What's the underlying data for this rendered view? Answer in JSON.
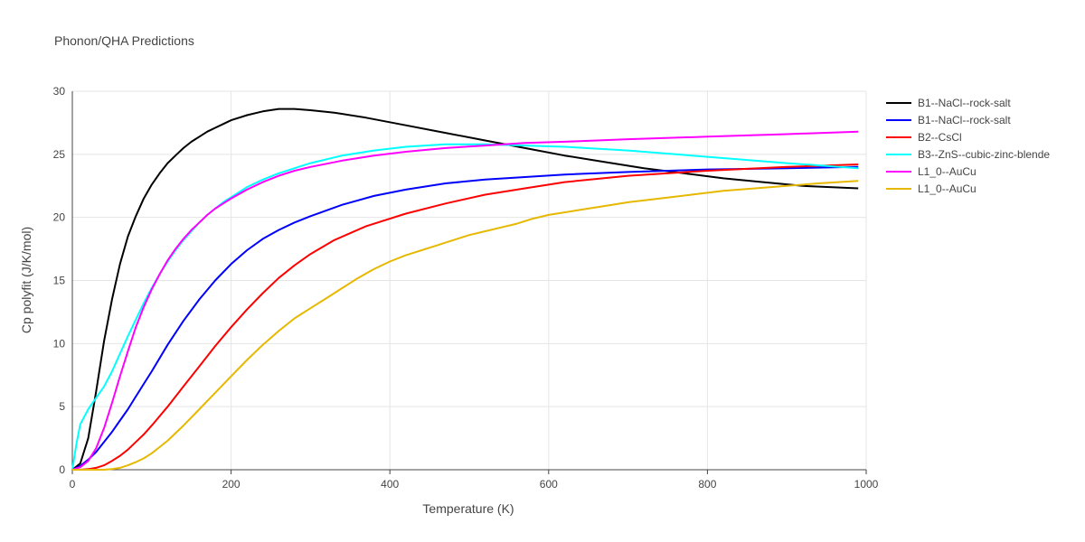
{
  "chart_data": {
    "type": "line",
    "title": "Phonon/QHA Predictions",
    "xlabel": "Temperature (K)",
    "ylabel": "Cp polyfit (J/K/mol)",
    "xlim": [
      0,
      1000
    ],
    "ylim": [
      0,
      30
    ],
    "xticks": [
      0,
      200,
      400,
      600,
      800,
      1000
    ],
    "yticks": [
      0,
      5,
      10,
      15,
      20,
      25,
      30
    ],
    "grid": true,
    "legend_position": "right",
    "series": [
      {
        "name": "B1--NaCl--rock-salt",
        "color": "#000000",
        "x": [
          0,
          10,
          20,
          30,
          40,
          50,
          60,
          70,
          80,
          90,
          100,
          110,
          120,
          130,
          140,
          150,
          160,
          170,
          180,
          190,
          200,
          220,
          240,
          260,
          280,
          300,
          330,
          370,
          420,
          470,
          520,
          570,
          620,
          670,
          720,
          770,
          820,
          870,
          920,
          990
        ],
        "y": [
          0,
          0.5,
          2.5,
          6.2,
          10.2,
          13.5,
          16.3,
          18.5,
          20.1,
          21.5,
          22.6,
          23.5,
          24.3,
          24.9,
          25.5,
          26.0,
          26.4,
          26.8,
          27.1,
          27.4,
          27.7,
          28.1,
          28.4,
          28.6,
          28.6,
          28.5,
          28.3,
          27.9,
          27.3,
          26.7,
          26.1,
          25.5,
          24.9,
          24.4,
          23.9,
          23.5,
          23.1,
          22.8,
          22.5,
          22.3
        ]
      },
      {
        "name": "B1--NaCl--rock-salt",
        "color": "#0000ff",
        "x": [
          0,
          10,
          20,
          30,
          40,
          50,
          60,
          70,
          80,
          90,
          100,
          120,
          140,
          160,
          180,
          200,
          220,
          240,
          260,
          280,
          300,
          340,
          380,
          420,
          470,
          520,
          570,
          620,
          700,
          800,
          900,
          990
        ],
        "y": [
          0,
          0.3,
          0.8,
          1.4,
          2.2,
          3.0,
          3.9,
          4.8,
          5.8,
          6.8,
          7.8,
          9.9,
          11.8,
          13.5,
          15.0,
          16.3,
          17.4,
          18.3,
          19.0,
          19.6,
          20.1,
          21.0,
          21.7,
          22.2,
          22.7,
          23.0,
          23.2,
          23.4,
          23.6,
          23.8,
          23.9,
          24.0
        ]
      },
      {
        "name": "B2--CsCl",
        "color": "#ff0000",
        "x": [
          0,
          10,
          20,
          30,
          40,
          50,
          60,
          70,
          80,
          90,
          100,
          120,
          140,
          160,
          180,
          200,
          220,
          240,
          260,
          280,
          300,
          330,
          370,
          420,
          470,
          520,
          570,
          620,
          700,
          800,
          900,
          990
        ],
        "y": [
          0,
          0,
          0.05,
          0.15,
          0.35,
          0.7,
          1.1,
          1.6,
          2.2,
          2.8,
          3.5,
          5.0,
          6.6,
          8.2,
          9.8,
          11.3,
          12.7,
          14.0,
          15.2,
          16.2,
          17.1,
          18.2,
          19.3,
          20.3,
          21.1,
          21.8,
          22.3,
          22.8,
          23.3,
          23.7,
          24.0,
          24.2
        ]
      },
      {
        "name": "B3--ZnS--cubic-zinc-blende",
        "color": "#00ffff",
        "x": [
          0,
          5,
          10,
          20,
          30,
          40,
          50,
          60,
          70,
          80,
          90,
          100,
          110,
          120,
          130,
          140,
          150,
          160,
          170,
          180,
          190,
          200,
          220,
          240,
          260,
          280,
          300,
          340,
          380,
          420,
          470,
          520,
          570,
          620,
          700,
          800,
          900,
          990
        ],
        "y": [
          0,
          2.0,
          3.6,
          4.8,
          5.7,
          6.6,
          7.8,
          9.2,
          10.6,
          11.9,
          13.2,
          14.4,
          15.5,
          16.5,
          17.4,
          18.2,
          18.9,
          19.6,
          20.2,
          20.7,
          21.2,
          21.6,
          22.4,
          23.0,
          23.5,
          23.9,
          24.3,
          24.9,
          25.3,
          25.6,
          25.8,
          25.8,
          25.7,
          25.6,
          25.3,
          24.8,
          24.3,
          23.9
        ]
      },
      {
        "name": "L1_0--AuCu",
        "color": "#ff00ff",
        "x": [
          0,
          10,
          20,
          30,
          40,
          50,
          60,
          70,
          80,
          90,
          100,
          110,
          120,
          130,
          140,
          150,
          160,
          170,
          180,
          190,
          200,
          220,
          240,
          260,
          280,
          300,
          340,
          380,
          420,
          470,
          520,
          570,
          620,
          700,
          800,
          900,
          990
        ],
        "y": [
          0,
          0.2,
          0.7,
          1.7,
          3.3,
          5.3,
          7.4,
          9.4,
          11.3,
          12.9,
          14.3,
          15.5,
          16.6,
          17.5,
          18.3,
          19.0,
          19.6,
          20.2,
          20.7,
          21.1,
          21.5,
          22.2,
          22.8,
          23.3,
          23.7,
          24.0,
          24.5,
          24.9,
          25.2,
          25.5,
          25.7,
          25.9,
          26.0,
          26.2,
          26.4,
          26.6,
          26.8
        ]
      },
      {
        "name": "L1_0--AuCu",
        "color": "#e6b800",
        "x": [
          0,
          20,
          40,
          50,
          60,
          70,
          80,
          90,
          100,
          110,
          120,
          130,
          140,
          160,
          180,
          200,
          220,
          240,
          260,
          280,
          300,
          320,
          340,
          360,
          380,
          400,
          420,
          430,
          440,
          450,
          460,
          470,
          480,
          500,
          520,
          540,
          560,
          580,
          600,
          640,
          680,
          700,
          740,
          780,
          820,
          860,
          900,
          940,
          990
        ],
        "y": [
          0,
          0,
          0,
          0.05,
          0.15,
          0.35,
          0.6,
          0.9,
          1.3,
          1.8,
          2.3,
          2.9,
          3.5,
          4.8,
          6.1,
          7.4,
          8.7,
          9.9,
          11.0,
          12.0,
          12.8,
          13.6,
          14.4,
          15.2,
          15.9,
          16.5,
          17.0,
          17.2,
          17.4,
          17.6,
          17.8,
          18.0,
          18.2,
          18.6,
          18.9,
          19.2,
          19.5,
          19.9,
          20.2,
          20.6,
          21.0,
          21.2,
          21.5,
          21.8,
          22.1,
          22.3,
          22.5,
          22.7,
          22.9
        ]
      }
    ]
  }
}
